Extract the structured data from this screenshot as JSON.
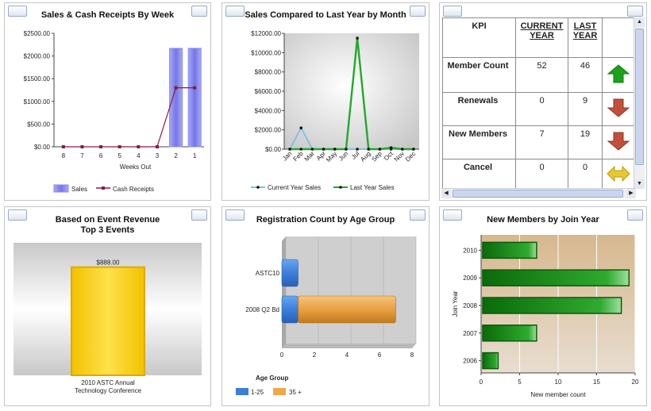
{
  "panels": {
    "weekly": {
      "title": "Sales & Cash Receipts By Week",
      "xlabel": "Weeks Out",
      "yticks": [
        "$2500.00",
        "$2000.00",
        "$1500.00",
        "$1000.00",
        "$500.00",
        "$0.00"
      ],
      "legend": [
        "Sales",
        "Cash Receipts"
      ]
    },
    "monthly": {
      "title": "Sales Compared to Last Year by Month",
      "yticks": [
        "$12000.00",
        "$10000.00",
        "$8000.00",
        "$6000.00",
        "$4000.00",
        "$2000.00",
        "$0.00"
      ],
      "legend": [
        "Current Year Sales",
        "Last Year Sales"
      ]
    },
    "kpi": {
      "headers": [
        "KPI",
        "CURRENT YEAR",
        "LAST YEAR"
      ],
      "header_current_line1": "CURRENT",
      "header_current_line2": "YEAR",
      "header_last_line1": "LAST",
      "header_last_line2": "YEAR",
      "rows": [
        {
          "label": "Member Count",
          "current": "52",
          "last": "46",
          "trend": "up-arrow-icon"
        },
        {
          "label": "Renewals",
          "current": "0",
          "last": "9",
          "trend": "down-arrow-icon"
        },
        {
          "label": "New Members",
          "current": "7",
          "last": "19",
          "trend": "down-arrow-icon"
        },
        {
          "label": "Cancel",
          "current": "0",
          "last": "0",
          "trend": "flat-arrow-icon"
        }
      ],
      "colors": {
        "up": "#1aa31a",
        "down": "#c0503c",
        "flat": "#e8c830"
      }
    },
    "events": {
      "title_line1": "Based on Event Revenue",
      "title_line2": "Top 3 Events",
      "value_label": "$888.00",
      "category_line1": "2010 ASTC Annual",
      "category_line2": "Technology Conference"
    },
    "agegroup": {
      "title": "Registration Count by Age Group",
      "legend_title": "Age Group",
      "legend": [
        "1-25",
        "35 +"
      ],
      "xticks": [
        "0",
        "2",
        "4",
        "6",
        "8"
      ]
    },
    "joinyear": {
      "title": "New Members by Join Year",
      "xlabel": "New member count",
      "ylabel": "Join Year",
      "xticks": [
        "0",
        "5",
        "10",
        "15",
        "20"
      ]
    }
  },
  "chart_data": [
    {
      "type": "bar",
      "title": "Sales & Cash Receipts By Week",
      "categories": [
        "8",
        "7",
        "6",
        "5",
        "4",
        "3",
        "2",
        "1"
      ],
      "xlabel": "Weeks Out",
      "ylabel": "",
      "ylim": [
        0,
        2500
      ],
      "series": [
        {
          "name": "Sales",
          "kind": "bar",
          "values": [
            0,
            0,
            0,
            0,
            0,
            0,
            2170,
            2170
          ]
        },
        {
          "name": "Cash Receipts",
          "kind": "line",
          "values": [
            0,
            0,
            0,
            0,
            0,
            0,
            1300,
            1300
          ]
        }
      ],
      "colors": {
        "Sales": "#8a8cf0",
        "Cash Receipts": "#8b1c3c"
      },
      "legend": "bottom",
      "grid": false
    },
    {
      "type": "line",
      "title": "Sales Compared to Last Year by Month",
      "categories": [
        "Jan",
        "Feb",
        "Mar",
        "Apr",
        "May",
        "Jun",
        "Jul",
        "Aug",
        "Sep",
        "Oct",
        "Nov",
        "Dec"
      ],
      "ylim": [
        0,
        12000
      ],
      "series": [
        {
          "name": "Current Year Sales",
          "values": [
            0,
            2200,
            0,
            0,
            0,
            0,
            0,
            0,
            0,
            0,
            0,
            0
          ]
        },
        {
          "name": "Last Year Sales",
          "values": [
            0,
            0,
            0,
            0,
            0,
            0,
            11500,
            0,
            0,
            150,
            0,
            0
          ]
        }
      ],
      "colors": {
        "Current Year Sales": "#7fc0e8",
        "Last Year Sales": "#1faa2a"
      },
      "legend": "bottom",
      "grid": false
    },
    {
      "type": "bar",
      "title": "Based on Event Revenue Top 3 Events",
      "categories": [
        "2010 ASTC Annual Technology Conference"
      ],
      "values": [
        888
      ],
      "ylim": [
        0,
        1000
      ],
      "grid": false
    },
    {
      "type": "bar",
      "orientation": "horizontal",
      "stacked": true,
      "title": "Registration Count by Age Group",
      "categories": [
        "ASTC10",
        "2008 Q2 Bd"
      ],
      "series": [
        {
          "name": "1-25",
          "values": [
            1,
            1
          ]
        },
        {
          "name": "35 +",
          "values": [
            0,
            6
          ]
        }
      ],
      "xlim": [
        0,
        8
      ],
      "colors": {
        "1-25": "#3b7fdc",
        "35 +": "#f0a848"
      },
      "legend": "bottom-left"
    },
    {
      "type": "bar",
      "orientation": "horizontal",
      "title": "New Members by Join Year",
      "categories": [
        "2010",
        "2009",
        "2008",
        "2007",
        "2006"
      ],
      "values": [
        7,
        19,
        18,
        7,
        2
      ],
      "xlim": [
        0,
        20
      ],
      "xlabel": "New member count",
      "ylabel": "Join Year",
      "colors": {
        "bar": "#1f8a1f"
      },
      "grid": true
    }
  ]
}
